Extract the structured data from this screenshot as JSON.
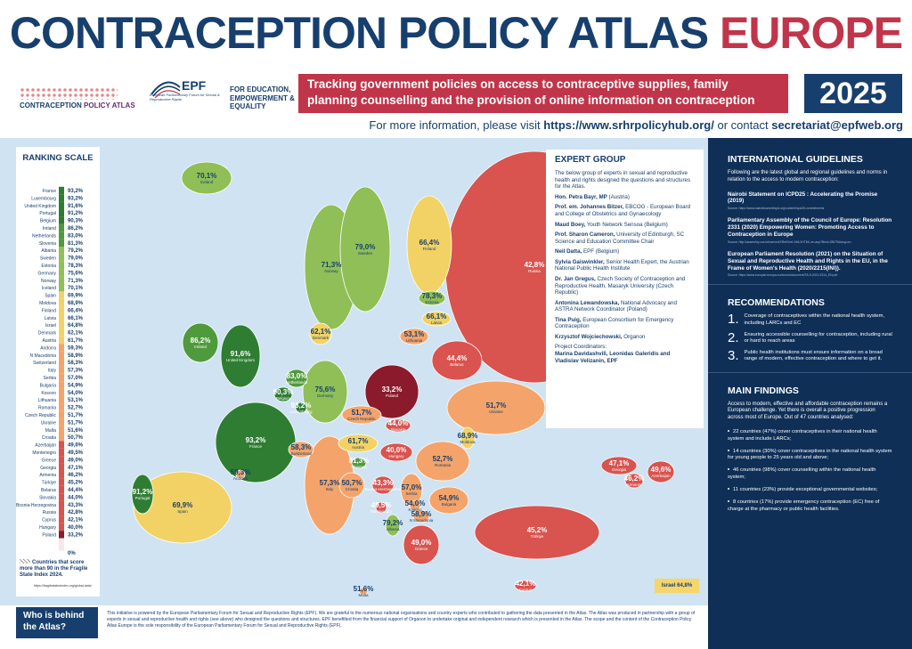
{
  "header": {
    "title": "CONTRACEPTION POLICY ATLAS",
    "title_accent": "EUROPE",
    "logo_atlas": "CONTRACEPTION",
    "logo_atlas_accent": "POLICY ATLAS",
    "logo_epf": "EPF",
    "logo_epf_tagline": "European Parliamentary Forum for Sexual & Reproductive Rights",
    "logo_epf_side": "FOR EDUCATION, EMPOWERMENT & EQUALITY",
    "banner": "Tracking government policies on access to contraceptive supplies, family planning counselling and the provision of online information on contraception",
    "year": "2025",
    "info_prefix": "For more information, please visit",
    "info_url": "https://www.srhrpolicyhub.org/",
    "info_mid": "or contact",
    "info_email": "secretariat@epfweb.org"
  },
  "ranking": {
    "title": "RANKING SCALE",
    "items": [
      {
        "country": "France",
        "value": "93,2%"
      },
      {
        "country": "Luxembourg",
        "value": "93,2%"
      },
      {
        "country": "United Kingdom",
        "value": "91,6%"
      },
      {
        "country": "Portugal",
        "value": "91,2%"
      },
      {
        "country": "Belgium",
        "value": "90,3%"
      },
      {
        "country": "Ireland",
        "value": "86,2%"
      },
      {
        "country": "Netherlands",
        "value": "83,0%"
      },
      {
        "country": "Slovenia",
        "value": "81,3%"
      },
      {
        "country": "Albania",
        "value": "79,2%"
      },
      {
        "country": "Sweden",
        "value": "79,0%"
      },
      {
        "country": "Estonia",
        "value": "78,3%"
      },
      {
        "country": "Germany",
        "value": "75,6%"
      },
      {
        "country": "Norway",
        "value": "71,3%"
      },
      {
        "country": "Iceland",
        "value": "70,1%"
      },
      {
        "country": "Spain",
        "value": "69,9%"
      },
      {
        "country": "Moldova",
        "value": "68,9%"
      },
      {
        "country": "Finland",
        "value": "66,4%"
      },
      {
        "country": "Latvia",
        "value": "66,1%"
      },
      {
        "country": "Israel",
        "value": "64,8%"
      },
      {
        "country": "Denmark",
        "value": "62,1%"
      },
      {
        "country": "Austria",
        "value": "61,7%"
      },
      {
        "country": "Andorra",
        "value": "59,3%"
      },
      {
        "country": "N Macedonia",
        "value": "58,9%"
      },
      {
        "country": "Switzerland",
        "value": "58,3%"
      },
      {
        "country": "Italy",
        "value": "57,3%"
      },
      {
        "country": "Serbia",
        "value": "57,0%"
      },
      {
        "country": "Bulgaria",
        "value": "54,9%"
      },
      {
        "country": "Kosovo",
        "value": "54,0%"
      },
      {
        "country": "Lithuania",
        "value": "53,1%"
      },
      {
        "country": "Romania",
        "value": "52,7%"
      },
      {
        "country": "Czech Republic",
        "value": "51,7%"
      },
      {
        "country": "Ukraine",
        "value": "51,7%"
      },
      {
        "country": "Malta",
        "value": "51,6%"
      },
      {
        "country": "Croatia",
        "value": "50,7%"
      },
      {
        "country": "Azerbaijan",
        "value": "49,6%"
      },
      {
        "country": "Montenegro",
        "value": "49,5%"
      },
      {
        "country": "Greece",
        "value": "49,0%"
      },
      {
        "country": "Georgia",
        "value": "47,1%"
      },
      {
        "country": "Armenia",
        "value": "46,2%"
      },
      {
        "country": "Türkiye",
        "value": "45,2%"
      },
      {
        "country": "Belarus",
        "value": "44,4%"
      },
      {
        "country": "Slovakia",
        "value": "44,0%"
      },
      {
        "country": "Bosnia-Herzegovina",
        "value": "43,3%"
      },
      {
        "country": "Russia",
        "value": "42,8%"
      },
      {
        "country": "Cyprus",
        "value": "42,1%"
      },
      {
        "country": "Hungary",
        "value": "40,0%"
      },
      {
        "country": "Poland",
        "value": "33,2%"
      }
    ],
    "zero": "0%",
    "fragile_note": "Countries that score more than 90 in the Fragile State Index 2024.",
    "fragile_url": "https://fragilestatesindex.org/global-data/"
  },
  "expert_group": {
    "title": "EXPERT GROUP",
    "intro": "The below group of experts in sexual and reproductive health and rights designed the questions and structures for the Atlas.",
    "members": [
      {
        "name": "Hon. Petra Bayr, MP",
        "role": "(Austria)"
      },
      {
        "name": "Prof. em. Johannes Bitzer,",
        "role": "EBCOG - European Board and College of Obstetrics and Gynaecology"
      },
      {
        "name": "Maud Boey,",
        "role": "Youth Network Sensoa (Belgium)"
      },
      {
        "name": "Prof. Sharon Cameron,",
        "role": "University of Edinburgh, SC Science and Education Committee Chair"
      },
      {
        "name": "Neil Datta,",
        "role": "EPF (Belgium)"
      },
      {
        "name": "Sylvia Gaiswinkler,",
        "role": "Senior Health Expert, the Austrian National Public Health Institute"
      },
      {
        "name": "Dr. Jan Gregus,",
        "role": "Czech Society of Contraception and Reproductive Health, Masaryk University (Czech Republic)"
      },
      {
        "name": "Antonina Lewandowska,",
        "role": "National Advocacy and ASTRA Network Coordinator (Poland)"
      },
      {
        "name": "Tina Puig,",
        "role": "European Consortium for Emergency Contraception"
      },
      {
        "name": "Krzysztof Wojciechowski,",
        "role": "Organon"
      }
    ],
    "coordinators_label": "Project Coordinators:",
    "coordinators": "Marina Davidashvili, Leonidas Galeridis and Vladislav Velizanin, EPF"
  },
  "guidelines": {
    "title": "INTERNATIONAL GUIDELINES",
    "intro": "Following are the latest global and regional guidelines and norms in relation to the access to modern contraception:",
    "items": [
      {
        "title": "Nairobi Statement on ICPD25 : Accelerating the Promise (2019)",
        "source": "Source: https://www.nairobisummiticpd.org/content/icpd25-commitments"
      },
      {
        "title": "Parliamentary Assembly of the Council of Europe: Resolution 2331 (2020) Empowering Women: Promoting Access to Contraception in Europe",
        "source": "Source: http://assembly.coe.int/nw/xml/XRef/Xref-XML2HTML-en.asp?fileid=28679&lang=en"
      },
      {
        "title": "European Parliament Resolution (2021) on the Situation of Sexual and Reproductive Health and Rights in the EU, in the Frame of Women's Health (2020/2215(INI)).",
        "source": "Source: https://www.europarl.europa.eu/doceo/document/TA-9-2021-0314_EN.pdf"
      }
    ]
  },
  "recommendations": {
    "title": "RECOMMENDATIONS",
    "items": [
      {
        "number": "1.",
        "text": "Coverage of contraceptives within the national health system, including LARCs and EC"
      },
      {
        "number": "2.",
        "text": "Ensuring accessible counselling for contraception, including rural or hard to reach areas"
      },
      {
        "number": "3.",
        "text": "Public health institutions must ensure information on a broad range of modern, effective contraception and where to get it."
      }
    ]
  },
  "findings": {
    "title": "MAIN FINDINGS",
    "intro": "Access to modern, effective and affordable contraception remains a European challenge. Yet there is overall a positive progression across most of Europe. Out of 47 countries analysed:",
    "items": [
      "22 countries (47%) cover contraceptives in their national health system and include LARCs;",
      "14 countries (30%) cover contraceptives in the national health system for young people to 25 years old and above;",
      "46 countries (98%) cover counselling within the national health system;",
      "11 countries (23%) provide exceptional governmental websites;",
      "8 countries (17%) provide emergency contraception (EC) free of charge at the pharmacy or public health facilities."
    ]
  },
  "footer": {
    "title": "Who is behind the Atlas?",
    "text": "This initiative is powered by the European Parliamentary Forum for Sexual and Reproductive Rights (EPF). We are grateful to the numerous national organisations and country experts who contributed to gathering the data presented in the Atlas. The Atlas was produced in partnership with a group of experts in sexual and reproductive health and rights (see above) who designed the questions and structures. EPF benefitted from the financial support of Organon to undertake original and independent research which is presented in the Atlas. The scope and the content of the Contraception Policy Atlas Europe is the sole responsibility of the European Parliamentary Forum for Sexual and Reproductive Rights (EPF)."
  }
}
